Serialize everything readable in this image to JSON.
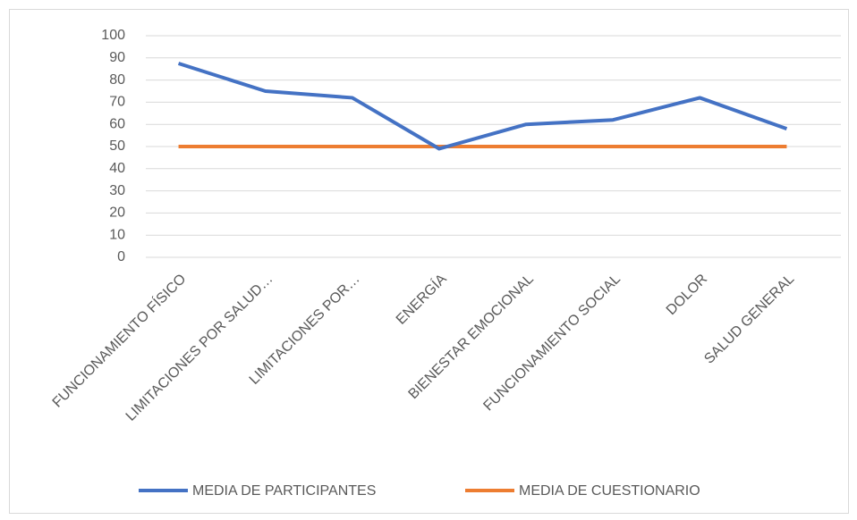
{
  "chart_data": {
    "type": "line",
    "categories": [
      "FUNCIONAMIENTO FÍSICO",
      "LIMITACIONES POR SALUD…",
      "LIMITACIONES POR…",
      "ENERGÍA",
      "BIENESTAR EMOCIONAL",
      "FUNCIONAMIENTO SOCIAL",
      "DOLOR",
      "SALUD GENERAL"
    ],
    "series": [
      {
        "name": "MEDIA DE PARTICIPANTES",
        "color": "#4472c4",
        "values": [
          87.5,
          75,
          72,
          49,
          60,
          62,
          72,
          58
        ]
      },
      {
        "name": "MEDIA DE CUESTIONARIO",
        "color": "#ed7d31",
        "values": [
          50,
          50,
          50,
          50,
          50,
          50,
          50,
          50
        ]
      }
    ],
    "ylim": [
      0,
      100
    ],
    "yticks": [
      0,
      10,
      20,
      30,
      40,
      50,
      60,
      70,
      80,
      90,
      100
    ],
    "grid": true,
    "legend": "bottom"
  }
}
